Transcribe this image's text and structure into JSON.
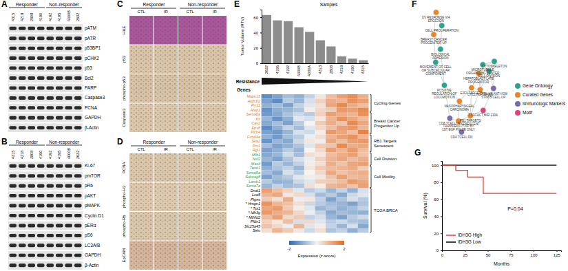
{
  "chart_data": [
    {
      "type": "bar",
      "ylabel": "Tumor Volume (RTV)",
      "xlabel": "Samples",
      "categories": [
        "2632",
        "4195",
        "4192",
        "4000B",
        "4000A",
        "4313",
        "2808",
        "4218",
        "4190",
        "4315"
      ],
      "values": [
        63,
        56,
        55,
        47,
        41,
        30,
        22,
        9,
        6,
        4
      ],
      "color": "#8c8c8c",
      "ylim": [
        0,
        70
      ],
      "yticks": [
        0,
        20,
        40,
        60
      ]
    },
    {
      "type": "line",
      "xlabel": "Months",
      "ylabel": "Survival (%)",
      "annotation": "P=0.04",
      "legend": "bottom-left",
      "xlim": [
        0,
        130
      ],
      "xticks": [
        0,
        25,
        50,
        75,
        100,
        125
      ],
      "ylim": [
        0,
        105
      ],
      "yticks": [
        0,
        20,
        40,
        60,
        80,
        100
      ],
      "series": [
        {
          "name": "IDH3G High",
          "color": "#e8392f",
          "line_style": "step",
          "x": [
            0,
            15,
            28,
            45,
            125
          ],
          "values": [
            100,
            94,
            86,
            67,
            67
          ]
        },
        {
          "name": "IDH3G Low",
          "color": "#000000",
          "line_style": "step",
          "x": [
            0,
            125
          ],
          "values": [
            100,
            100
          ]
        }
      ]
    }
  ],
  "panels": {
    "A": {
      "label": "A",
      "groups": [
        {
          "name": "Responder",
          "samples": [
            "4315",
            "4218",
            "2808",
            "4190"
          ]
        },
        {
          "name": "Non-responder",
          "samples": [
            "4192",
            "4195",
            "4000B",
            "2632"
          ]
        }
      ],
      "proteins": [
        "pATM",
        "pATR",
        "p53BP1",
        "pCHK2",
        "p53",
        "Bcl2",
        "PARP",
        "Caspase3",
        "PCNA",
        "GAPDH",
        "β-Actin"
      ]
    },
    "B": {
      "label": "B",
      "groups": [
        {
          "name": "Responder",
          "samples": [
            "4315",
            "4218",
            "2808",
            "4190"
          ]
        },
        {
          "name": "Non-responder",
          "samples": [
            "4192",
            "4195",
            "4000B",
            "2632"
          ]
        }
      ],
      "proteins": [
        "Ki-67",
        "pmTOR",
        "pRb",
        "pAKT",
        "pMAPK",
        "Cyclin D1",
        "pERα",
        "pS6",
        "LC3A/B",
        "GAPDH",
        "β-Actin"
      ]
    },
    "C": {
      "label": "C",
      "columns": [
        {
          "group": "Responder",
          "conditions": [
            "CTL",
            "IR"
          ]
        },
        {
          "group": "Non-responder",
          "conditions": [
            "CTL",
            "IR"
          ]
        }
      ],
      "rows": [
        "H&E",
        "p53",
        "phospho-p53",
        "Caspase3"
      ],
      "colors": [
        "#a8579a",
        "#d8c4a6",
        "#d6c2a4",
        "#dac7aa"
      ]
    },
    "D": {
      "label": "D",
      "columns": [
        {
          "group": "Responder",
          "conditions": [
            "CTL",
            "IR"
          ]
        },
        {
          "group": "Non-responder",
          "conditions": [
            "CTL",
            "IR"
          ]
        }
      ],
      "rows": [
        "PCNA",
        "phospho-H3",
        "phospho-Rb",
        "EpCAM"
      ],
      "colors": [
        "#d9c5a8",
        "#dcc9ad",
        "#d8c6aa",
        "#d4b59a"
      ]
    },
    "E": {
      "label": "E",
      "resistance_label": "Resistance",
      "genes_label": "Genes",
      "heatmap": {
        "legend_title": "Expression (z-score)",
        "zlim": [
          -2,
          2
        ],
        "zticks": [
          -2,
          2
        ],
        "groups": [
          {
            "name": "Cycling Genes",
            "color": "#e07b1a",
            "genes": [
              "Mapk13",
              "Aldh1l2",
              "Prr11",
              "Afap1"
            ],
            "values": [
              [
                -1.5,
                -1.2,
                -0.8,
                -1.0,
                -0.5,
                0.2,
                0.8,
                1.2,
                1.5,
                1.0
              ],
              [
                -1.2,
                -1.5,
                -0.6,
                -0.9,
                -0.3,
                0.5,
                1.0,
                0.9,
                1.4,
                1.2
              ],
              [
                -1.0,
                -0.8,
                -1.2,
                -0.5,
                -0.2,
                0.3,
                1.1,
                1.5,
                1.0,
                0.8
              ],
              [
                -1.4,
                -1.0,
                -0.9,
                -0.7,
                0.1,
                0.4,
                0.6,
                1.3,
                1.2,
                1.5
              ]
            ]
          },
          {
            "name": "Breast Cancer Progenitor Up",
            "color": "#e07b1a",
            "genes": [
              "Sema6a",
              "Kit",
              "Cav2",
              "Eps8",
              "Plcb4"
            ],
            "values": [
              [
                -1.3,
                -1.1,
                -0.7,
                -0.4,
                -0.6,
                0.5,
                1.2,
                1.0,
                0.9,
                1.4
              ],
              [
                -0.9,
                -1.4,
                -1.0,
                -0.2,
                -0.3,
                0.2,
                0.9,
                1.4,
                1.1,
                0.8
              ],
              [
                -1.1,
                -0.8,
                -1.2,
                -0.6,
                0.0,
                0.6,
                1.0,
                0.7,
                1.5,
                1.1
              ],
              [
                -1.5,
                -1.0,
                -0.5,
                -0.8,
                -0.2,
                0.4,
                0.8,
                1.2,
                1.3,
                0.9
              ],
              [
                -1.2,
                -1.3,
                -0.9,
                -0.3,
                -0.4,
                0.1,
                1.3,
                1.1,
                0.8,
                1.6
              ]
            ]
          },
          {
            "name": "RB1 Targets Senescent",
            "color": "#e07b1a",
            "genes": [
              "Frmd4a",
              "Ska2",
              "Prc1",
              "Rgl1"
            ],
            "values": [
              [
                -1.0,
                -1.3,
                -0.8,
                -0.6,
                -0.1,
                0.3,
                0.9,
                1.2,
                1.4,
                0.9
              ],
              [
                -1.4,
                -0.9,
                -1.1,
                -0.4,
                0.2,
                0.1,
                1.1,
                0.8,
                1.2,
                1.3
              ],
              [
                -0.8,
                -1.2,
                -1.0,
                -0.7,
                -0.2,
                0.6,
                0.7,
                1.5,
                1.0,
                1.1
              ],
              [
                -1.2,
                -1.0,
                -0.6,
                -0.9,
                0.0,
                0.4,
                1.2,
                0.9,
                1.3,
                0.8
              ]
            ]
          },
          {
            "name": "Cell Division",
            "color": "#2e9e4f",
            "genes": [
              "Mlh1",
              "Nuf2",
              "Mastl"
            ],
            "values": [
              [
                -1.1,
                -0.9,
                -0.4,
                -0.8,
                0.3,
                0.2,
                0.8,
                1.0,
                1.2,
                0.7
              ],
              [
                -0.9,
                -1.2,
                -0.7,
                -0.3,
                -0.1,
                0.5,
                0.9,
                1.1,
                0.8,
                1.0
              ],
              [
                -1.3,
                -0.6,
                -0.9,
                -0.5,
                0.1,
                0.3,
                1.0,
                0.7,
                1.1,
                1.2
              ]
            ]
          },
          {
            "name": "Cell Motility",
            "color": "#2e9e4f",
            "genes": [
              "Twist1",
              "Sema5a",
              "Sdccag8",
              "Lamb1",
              "Sema7a"
            ],
            "values": [
              [
                -1.0,
                -0.7,
                -0.5,
                -0.9,
                0.2,
                0.6,
                0.8,
                0.9,
                1.0,
                0.6
              ],
              [
                -0.8,
                -1.1,
                -0.3,
                -0.6,
                0.0,
                0.4,
                1.1,
                0.7,
                0.9,
                1.0
              ],
              [
                -1.2,
                -0.8,
                -0.6,
                -0.2,
                0.1,
                0.2,
                0.7,
                1.2,
                0.8,
                0.9
              ],
              [
                -0.6,
                -1.0,
                -0.9,
                -0.4,
                -0.2,
                0.5,
                0.6,
                0.8,
                1.3,
                1.1
              ],
              [
                -0.9,
                -0.5,
                -0.8,
                -0.7,
                0.3,
                0.1,
                0.9,
                1.0,
                0.7,
                1.2
              ]
            ]
          },
          {
            "name": "TCGA BRCA",
            "color": "#000000",
            "genes": [
              "Dnal1",
              "Lca5",
              "Ptges",
              "* Hmgn1",
              "* Tpi1",
              "* Idh3g",
              "* Mthfd2",
              "Pfdn1",
              "Slc25a45",
              "Selo"
            ],
            "values": [
              [
                1.2,
                0.8,
                0.5,
                -0.2,
                -0.6,
                -0.4,
                -0.9,
                -0.5,
                -1.0,
                -0.3
              ],
              [
                0.9,
                1.1,
                0.2,
                0.4,
                -0.3,
                -0.8,
                -0.6,
                -1.1,
                -0.4,
                -0.2
              ],
              [
                0.6,
                0.3,
                1.0,
                -0.1,
                0.2,
                -0.5,
                -1.2,
                -0.7,
                -0.3,
                -0.6
              ],
              [
                1.4,
                0.9,
                0.7,
                0.3,
                -0.4,
                -0.6,
                -0.8,
                -0.9,
                -1.2,
                -0.7
              ],
              [
                1.1,
                1.3,
                0.6,
                0.1,
                -0.2,
                -0.9,
                -0.7,
                -1.0,
                -0.8,
                -0.5
              ],
              [
                1.3,
                1.0,
                0.9,
                0.4,
                -0.1,
                -0.5,
                -1.1,
                -0.8,
                -0.9,
                -1.0
              ],
              [
                0.8,
                1.2,
                0.4,
                0.6,
                -0.5,
                -0.3,
                -0.9,
                -1.2,
                -0.6,
                -0.4
              ],
              [
                0.5,
                0.2,
                0.8,
                -0.3,
                0.4,
                -0.2,
                -0.6,
                -0.4,
                -0.7,
                -0.8
              ],
              [
                0.7,
                0.4,
                -0.1,
                0.9,
                -0.2,
                0.1,
                -0.5,
                -0.9,
                -0.3,
                -1.1
              ],
              [
                0.3,
                0.9,
                0.6,
                0.2,
                -0.4,
                0.3,
                -0.7,
                -0.5,
                -1.0,
                -0.6
              ]
            ]
          }
        ]
      }
    },
    "F": {
      "label": "F",
      "legend": [
        {
          "name": "Gene Ontology",
          "color": "#2ca58d"
        },
        {
          "name": "Curated Genes",
          "color": "#e8862a"
        },
        {
          "name": "Immunologic Markers",
          "color": "#7d6bb0"
        },
        {
          "name": "Motif",
          "color": "#e0407e"
        }
      ],
      "nodes": [
        {
          "label": "CYCLING GENES",
          "category": 1
        },
        {
          "label": "HEPATOBLAST LATE PROGENITOR",
          "category": 1
        },
        {
          "label": "CELL DIVISION",
          "category": 0
        },
        {
          "label": "MICROTUBULE ORGANIZING CENTER",
          "category": 0
        },
        {
          "label": "CYTOSKELETON",
          "category": 0
        },
        {
          "label": "CTRL VS ANTI-IGM STIM B CELL UP",
          "category": 2
        },
        {
          "label": "RB1 TARGETS SENESCENT",
          "category": 1
        },
        {
          "label": "E2F1 TARGETS",
          "category": 1
        },
        {
          "label": "CD4 TCELL DN",
          "category": 2
        },
        {
          "label": "NASOPHARYNGEAL CARCINOMA",
          "category": 1
        },
        {
          "label": "TRANSIENTLY UP BY 1ST EGF PULSE ONLY",
          "category": 1
        },
        {
          "label": "TTGCACT MIR-130A",
          "category": 3
        },
        {
          "label": "POSITIVE REGULATION OF LOCOMOTION",
          "category": 0
        },
        {
          "label": "CD8 TCELL UP",
          "category": 2
        },
        {
          "label": "MOVEMENT OF CELL OR SUBCELLULAR COMPONENT",
          "category": 0
        },
        {
          "label": "BREAST CANCER PROGENITOR UP",
          "category": 1
        },
        {
          "label": "BIOLOGICAL ADHESION",
          "category": 0
        },
        {
          "label": "CELL PROLIFERATION",
          "category": 0
        },
        {
          "label": "UV RESPONSE VIA ERCC3 DN",
          "category": 1
        }
      ],
      "edges": [
        [
          0,
          1
        ],
        [
          0,
          2
        ],
        [
          0,
          3
        ],
        [
          0,
          7
        ],
        [
          0,
          6
        ],
        [
          1,
          2
        ],
        [
          1,
          7
        ],
        [
          2,
          3
        ],
        [
          2,
          4
        ],
        [
          3,
          4
        ],
        [
          4,
          5
        ],
        [
          2,
          5
        ],
        [
          6,
          7
        ],
        [
          6,
          9
        ],
        [
          7,
          9
        ],
        [
          6,
          10
        ],
        [
          9,
          10
        ],
        [
          5,
          11
        ],
        [
          6,
          11
        ],
        [
          8,
          6
        ],
        [
          8,
          13
        ],
        [
          12,
          13
        ],
        [
          12,
          14
        ],
        [
          14,
          16
        ],
        [
          14,
          15
        ],
        [
          15,
          16
        ],
        [
          16,
          17
        ],
        [
          17,
          18
        ],
        [
          15,
          18
        ],
        [
          12,
          16
        ],
        [
          10,
          13
        ],
        [
          9,
          12
        ],
        [
          3,
          7
        ]
      ]
    },
    "G": {
      "label": "G"
    }
  }
}
